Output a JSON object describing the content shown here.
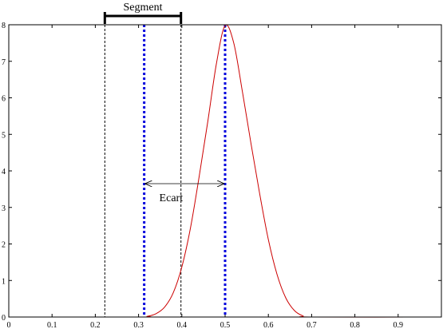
{
  "chart_data": {
    "type": "line",
    "title": "",
    "xlabel": "",
    "ylabel": "",
    "xlim": [
      0,
      1
    ],
    "ylim": [
      0,
      8
    ],
    "grid": false,
    "x_ticks": [
      0,
      0.1,
      0.2,
      0.3,
      0.4,
      0.5,
      0.6,
      0.7,
      0.8,
      0.9,
      1
    ],
    "x_tick_labels": [
      "0",
      "0.1",
      "0.2",
      "0.3",
      "0.4",
      "0.5",
      "0.6",
      "0.7",
      "0.8",
      "0.9",
      ""
    ],
    "y_ticks": [
      0,
      1,
      2,
      3,
      4,
      5,
      6,
      7,
      8
    ],
    "y_tick_labels": [
      "0",
      "1",
      "2",
      "3",
      "4",
      "5",
      "6",
      "7",
      "8"
    ],
    "series": [
      {
        "color": "#cc0000",
        "x": [
          0,
          0.3,
          0.32,
          0.34,
          0.36,
          0.38,
          0.4,
          0.42,
          0.44,
          0.46,
          0.48,
          0.5,
          0.52,
          0.54,
          0.56,
          0.58,
          0.6,
          0.62,
          0.64,
          0.66,
          0.68,
          0.7,
          1
        ],
        "y": [
          0,
          0,
          0.02,
          0.09,
          0.27,
          0.66,
          1.37,
          2.44,
          3.84,
          5.35,
          6.94,
          7.98,
          7.5,
          6.17,
          4.74,
          3.37,
          2.12,
          1.17,
          0.53,
          0.18,
          0.03,
          0,
          0
        ]
      }
    ],
    "vertical_lines": [
      {
        "x": 0.222,
        "style": "dashed",
        "color": "#000000"
      },
      {
        "x": 0.398,
        "style": "dashed",
        "color": "#000000"
      },
      {
        "x": 0.313,
        "style": "dotted",
        "color": "#0000dd"
      },
      {
        "x": 0.5,
        "style": "dotted",
        "color": "#0000dd"
      }
    ],
    "annotations": [
      {
        "text": "Segment",
        "type": "bracket",
        "x_from": 0.222,
        "x_to": 0.398
      },
      {
        "text": "Ecart",
        "type": "double-arrow",
        "x_from": 0.313,
        "x_to": 0.5,
        "y": 3.65
      }
    ]
  }
}
